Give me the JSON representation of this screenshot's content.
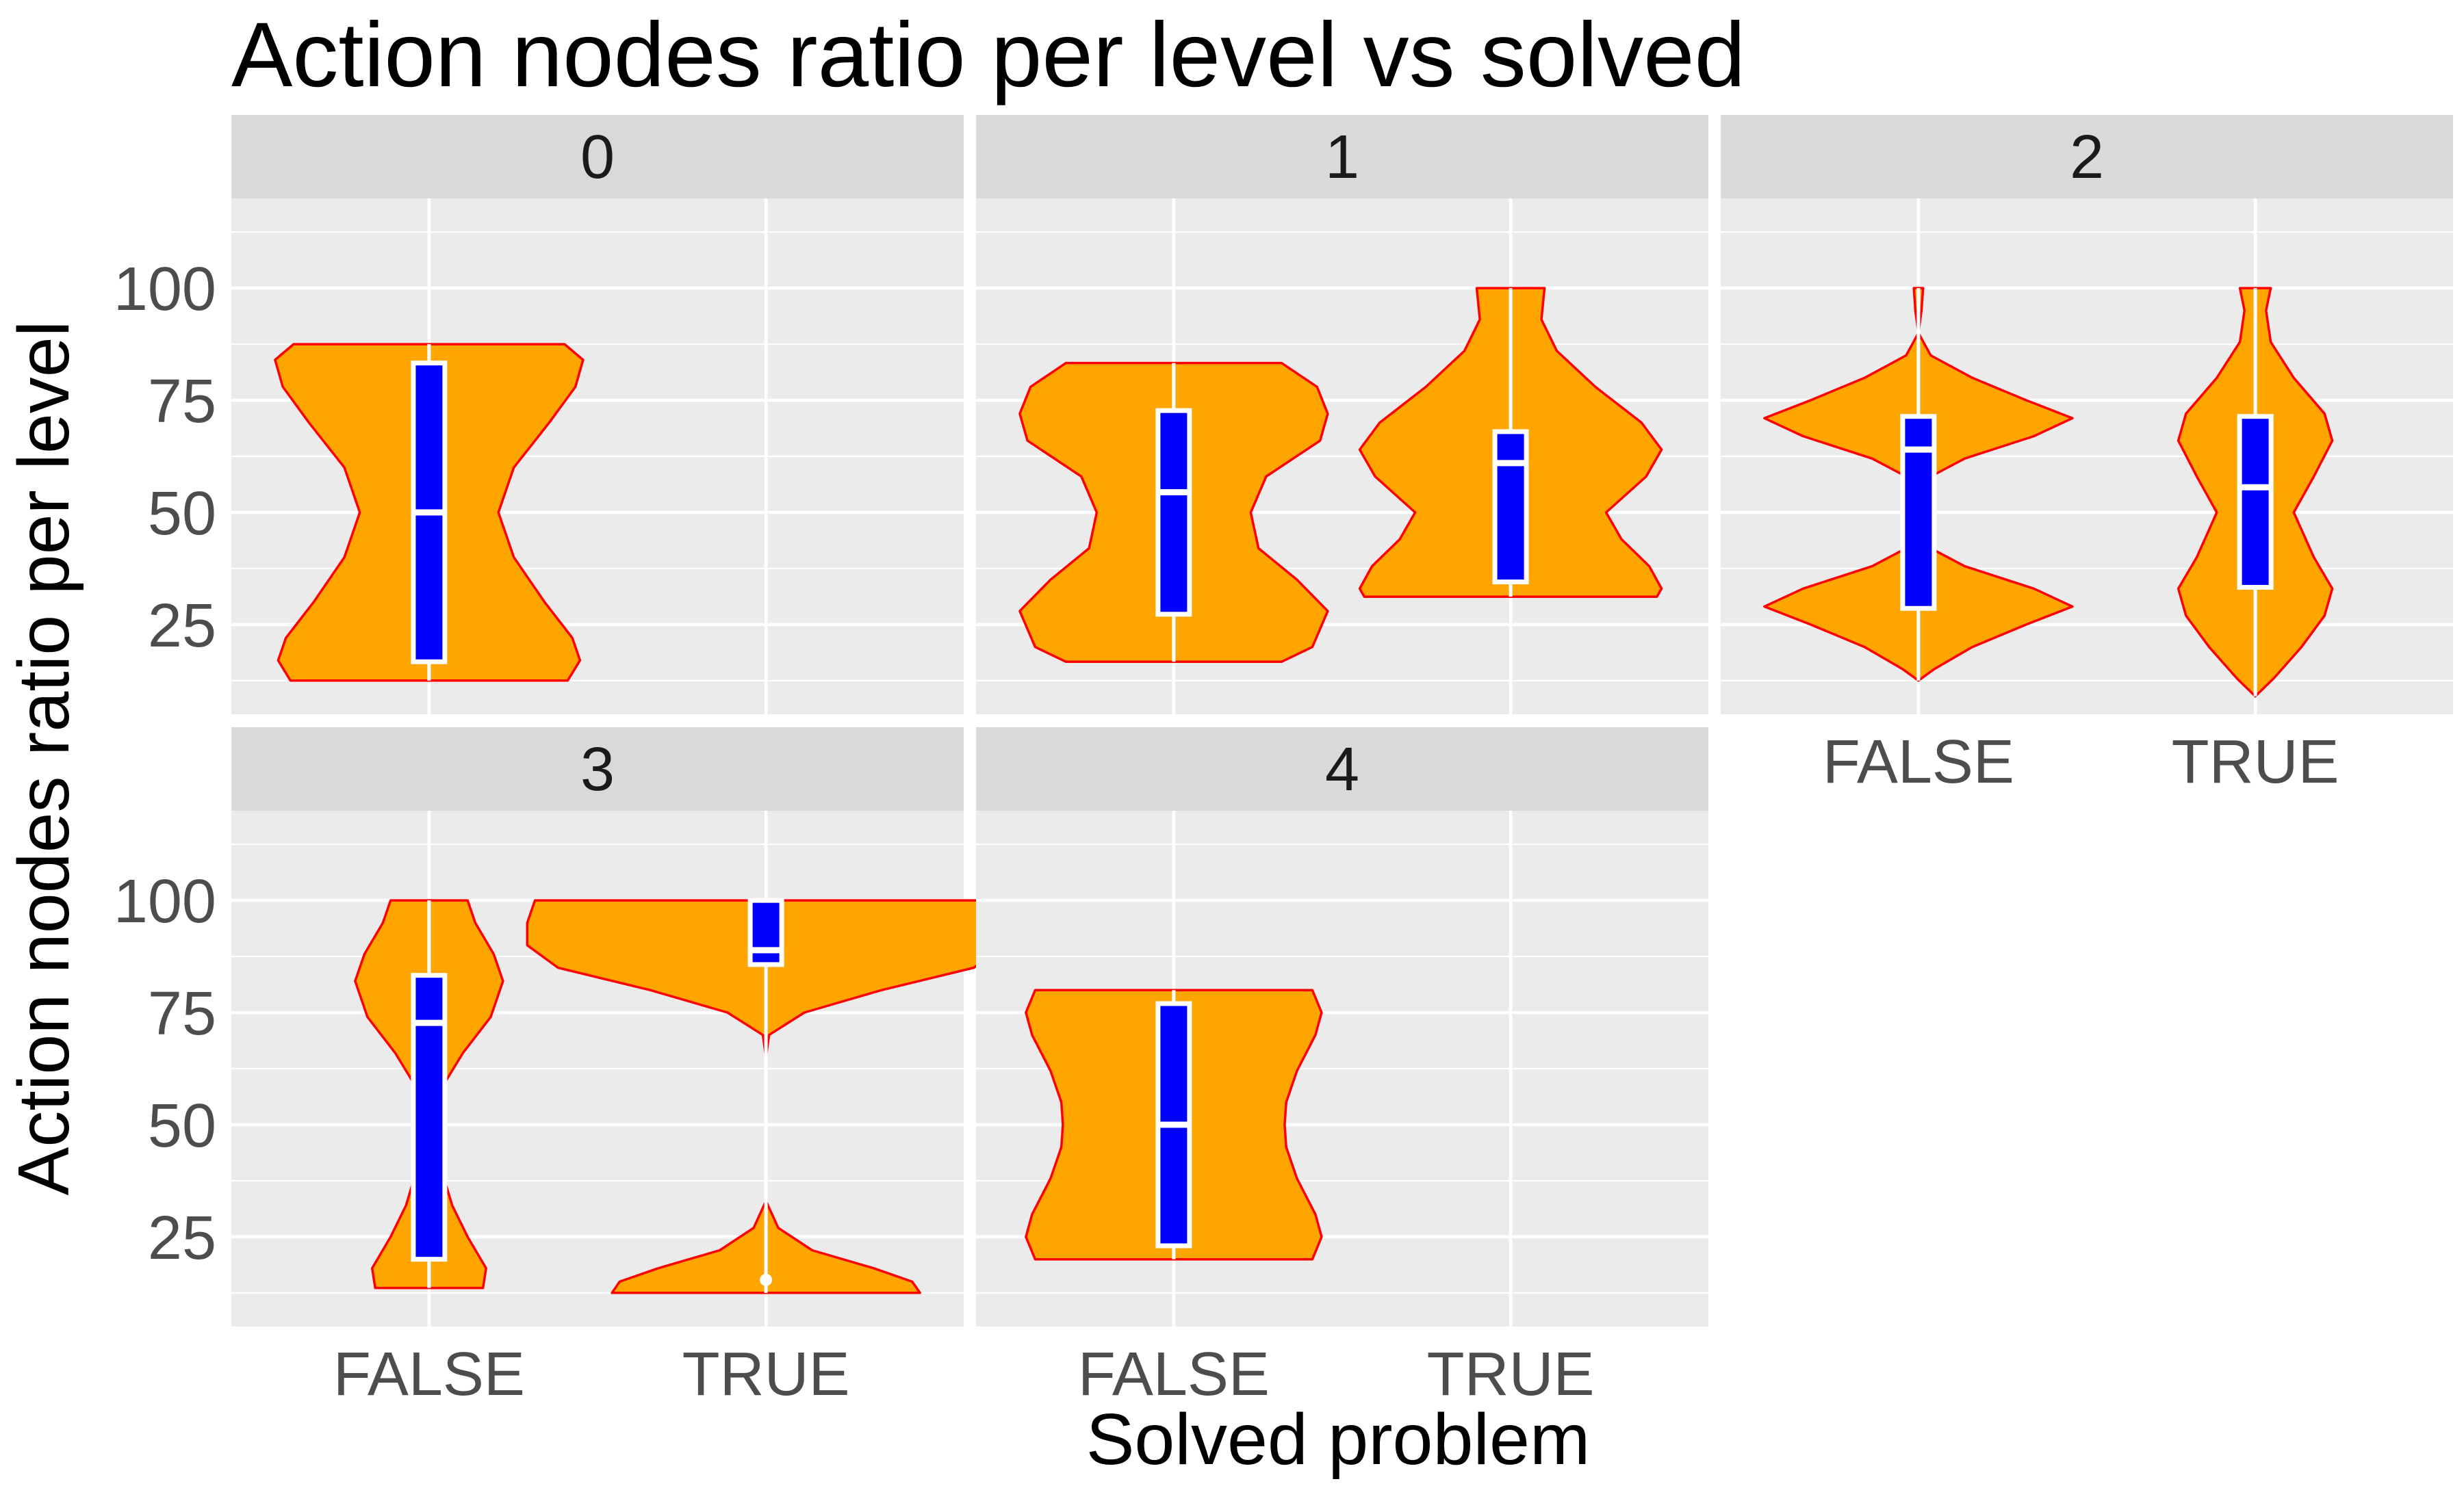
{
  "chart_data": {
    "type": "violin",
    "title": "Action nodes ratio per level vs solved",
    "xlabel": "Solved problem",
    "ylabel": "Action nodes ratio per level",
    "categories": [
      "FALSE",
      "TRUE"
    ],
    "y_ticks": [
      25,
      50,
      75,
      100
    ],
    "ylim": [
      5,
      120
    ],
    "grid": true,
    "legend": "none",
    "colors": {
      "violin_fill": "#FFA500",
      "violin_stroke": "#FF0000",
      "box_fill": "#0000FF",
      "box_stroke": "#FFFFFF",
      "panel_bg": "#EBEBEB",
      "strip_bg": "#D9D9D9",
      "grid": "#FFFFFF"
    },
    "panels": [
      {
        "label": "0",
        "violins": [
          {
            "x": "FALSE",
            "min": 12.5,
            "max": 87.5,
            "density": [
              [
                12.5,
                0.9
              ],
              [
                17,
                0.98
              ],
              [
                22,
                0.93
              ],
              [
                30,
                0.75
              ],
              [
                40,
                0.55
              ],
              [
                50,
                0.45
              ],
              [
                60,
                0.55
              ],
              [
                70,
                0.78
              ],
              [
                78,
                0.95
              ],
              [
                84,
                1.0
              ],
              [
                87.5,
                0.88
              ]
            ],
            "box": {
              "lower": 16.7,
              "median": 50,
              "upper": 83.3
            }
          },
          {
            "x": "TRUE",
            "min": null,
            "max": null,
            "density": [],
            "box": null
          }
        ]
      },
      {
        "label": "1",
        "violins": [
          {
            "x": "FALSE",
            "min": 16.7,
            "max": 83.3,
            "density": [
              [
                16.7,
                0.7
              ],
              [
                20,
                0.9
              ],
              [
                28,
                1.0
              ],
              [
                35,
                0.8
              ],
              [
                42,
                0.55
              ],
              [
                50,
                0.5
              ],
              [
                58,
                0.6
              ],
              [
                66,
                0.95
              ],
              [
                72,
                1.0
              ],
              [
                78,
                0.93
              ],
              [
                83.3,
                0.7
              ]
            ],
            "box": {
              "lower": 27.3,
              "median": 54.5,
              "upper": 72.7
            }
          },
          {
            "x": "TRUE",
            "min": 31.2,
            "max": 100,
            "density": [
              [
                31.2,
                0.95
              ],
              [
                33,
                0.98
              ],
              [
                38,
                0.9
              ],
              [
                44,
                0.72
              ],
              [
                50,
                0.62
              ],
              [
                58,
                0.88
              ],
              [
                64,
                0.98
              ],
              [
                70,
                0.85
              ],
              [
                78,
                0.55
              ],
              [
                86,
                0.3
              ],
              [
                93,
                0.2
              ],
              [
                100,
                0.22
              ]
            ],
            "box": {
              "lower": 34.5,
              "median": 61,
              "upper": 68
            }
          }
        ]
      },
      {
        "label": "2",
        "violins": [
          {
            "x": "FALSE",
            "min": 12.5,
            "max": 100,
            "density": [
              [
                12.5,
                0.0
              ],
              [
                15,
                0.1
              ],
              [
                20,
                0.35
              ],
              [
                25,
                0.7
              ],
              [
                29,
                1.0
              ],
              [
                33,
                0.75
              ],
              [
                38,
                0.3
              ],
              [
                42,
                0.08
              ],
              [
                50,
                0.0
              ],
              [
                58,
                0.08
              ],
              [
                62,
                0.3
              ],
              [
                67,
                0.75
              ],
              [
                71,
                1.0
              ],
              [
                75,
                0.7
              ],
              [
                80,
                0.35
              ],
              [
                85,
                0.08
              ],
              [
                90,
                0.0
              ],
              [
                95,
                0.02
              ],
              [
                100,
                0.03
              ]
            ],
            "box": {
              "lower": 28.6,
              "median": 64,
              "upper": 71.4
            }
          },
          {
            "x": "TRUE",
            "min": 9,
            "max": 100,
            "density": [
              [
                9,
                0.0
              ],
              [
                13,
                0.12
              ],
              [
                20,
                0.3
              ],
              [
                27,
                0.45
              ],
              [
                33,
                0.5
              ],
              [
                40,
                0.38
              ],
              [
                50,
                0.25
              ],
              [
                58,
                0.38
              ],
              [
                66,
                0.5
              ],
              [
                72,
                0.45
              ],
              [
                80,
                0.25
              ],
              [
                88,
                0.1
              ],
              [
                95,
                0.07
              ],
              [
                100,
                0.1
              ]
            ],
            "box": {
              "lower": 33.3,
              "median": 55.6,
              "upper": 71.4
            }
          }
        ]
      },
      {
        "label": "3",
        "violins": [
          {
            "x": "FALSE",
            "min": 13.6,
            "max": 100,
            "density": [
              [
                13.6,
                0.35
              ],
              [
                18,
                0.37
              ],
              [
                25,
                0.25
              ],
              [
                32,
                0.15
              ],
              [
                40,
                0.08
              ],
              [
                50,
                0.0
              ],
              [
                57,
                0.06
              ],
              [
                66,
                0.22
              ],
              [
                74,
                0.4
              ],
              [
                82,
                0.48
              ],
              [
                88,
                0.42
              ],
              [
                95,
                0.3
              ],
              [
                100,
                0.25
              ]
            ],
            "box": {
              "lower": 20,
              "median": 72.7,
              "upper": 83.3
            }
          },
          {
            "x": "TRUE",
            "min": 12.5,
            "max": 100,
            "density": [
              [
                12.5,
                1.0
              ],
              [
                15,
                0.95
              ],
              [
                18,
                0.7
              ],
              [
                22,
                0.3
              ],
              [
                27,
                0.08
              ],
              [
                33,
                0.0
              ],
              [
                65,
                0.0
              ],
              [
                70,
                0.02
              ],
              [
                75,
                0.25
              ],
              [
                80,
                0.75
              ],
              [
                85,
                1.35
              ],
              [
                90,
                1.55
              ],
              [
                95,
                1.55
              ],
              [
                100,
                1.5
              ]
            ],
            "box": {
              "lower": 85.7,
              "median": 88.9,
              "upper": 100
            },
            "outliers": [
              15.4
            ]
          }
        ]
      },
      {
        "label": "4",
        "violins": [
          {
            "x": "FALSE",
            "min": 20,
            "max": 80,
            "density": [
              [
                20,
                0.9
              ],
              [
                25,
                0.96
              ],
              [
                30,
                0.92
              ],
              [
                38,
                0.8
              ],
              [
                45,
                0.73
              ],
              [
                50,
                0.72
              ],
              [
                55,
                0.73
              ],
              [
                62,
                0.8
              ],
              [
                70,
                0.92
              ],
              [
                75,
                0.96
              ],
              [
                80,
                0.9
              ]
            ],
            "box": {
              "lower": 23,
              "median": 50,
              "upper": 77
            }
          },
          {
            "x": "TRUE",
            "min": null,
            "max": null,
            "density": [],
            "box": null
          }
        ]
      }
    ]
  }
}
